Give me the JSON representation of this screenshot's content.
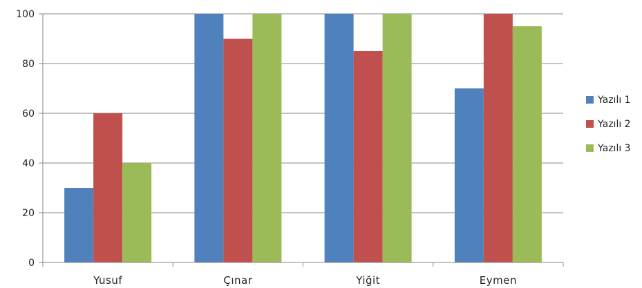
{
  "chart_data": {
    "type": "bar",
    "title": "",
    "xlabel": "",
    "ylabel": "",
    "categories": [
      "Yusuf",
      "Çınar",
      "Yiğit",
      "Eymen"
    ],
    "series": [
      {
        "name": "Yazılı 1",
        "color": "#4F81BD",
        "values": [
          30,
          100,
          100,
          70
        ]
      },
      {
        "name": "Yazılı 2",
        "color": "#C0504D",
        "values": [
          60,
          90,
          85,
          100
        ]
      },
      {
        "name": "Yazılı 3",
        "color": "#9BBB59",
        "values": [
          40,
          100,
          100,
          95
        ]
      }
    ],
    "ylim": [
      0,
      100
    ],
    "yticks": [
      0,
      20,
      40,
      60,
      80,
      100
    ],
    "grid": true,
    "legend": "right"
  }
}
